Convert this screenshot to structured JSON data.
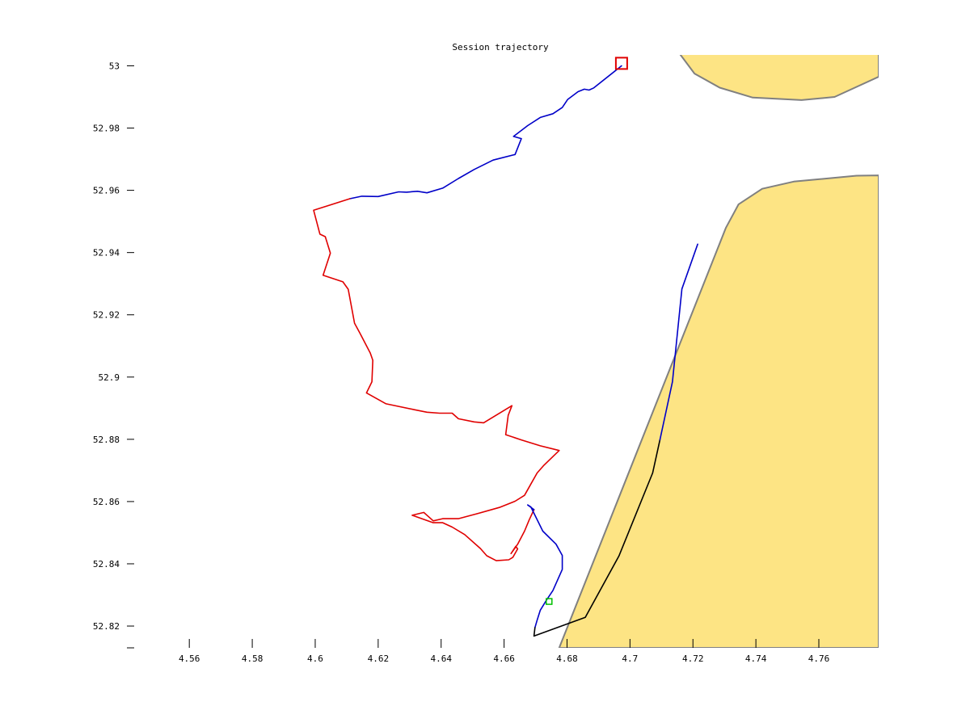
{
  "chart_data": {
    "type": "line",
    "title": "Session trajectory",
    "xlabel": "",
    "ylabel": "",
    "xlim": [
      4.543,
      4.779
    ],
    "ylim": [
      52.813,
      53.0035
    ],
    "x_ticks": [
      4.56,
      4.58,
      4.6,
      4.62,
      4.64,
      4.66,
      4.68,
      4.7,
      4.72,
      4.74,
      4.76
    ],
    "x_tick_labels": [
      "4.56",
      "4.58",
      "4.6",
      "4.62",
      "4.64",
      "4.66",
      "4.68",
      "4.7",
      "4.72",
      "4.74",
      "4.76"
    ],
    "y_ticks": [
      52.82,
      52.84,
      52.86,
      52.88,
      52.9,
      52.92,
      52.94,
      52.96,
      52.98,
      53.0
    ],
    "y_tick_labels": [
      "52.82",
      "52.84",
      "52.86",
      "52.88",
      "52.9",
      "52.92",
      "52.94",
      "52.96",
      "52.98",
      "53"
    ],
    "grid": false,
    "colors": {
      "land_fill": "#fde484",
      "land_edge": "#808080",
      "blue": "#0000c8",
      "red": "#e00000",
      "black": "#000000",
      "start_marker": "#00c000",
      "end_marker": "#e00000"
    },
    "land": [
      {
        "name": "north-land",
        "points": [
          [
            4.7157,
            53.004
          ],
          [
            4.7205,
            52.9975
          ],
          [
            4.7285,
            52.993
          ],
          [
            4.739,
            52.9898
          ],
          [
            4.7545,
            52.989
          ],
          [
            4.765,
            52.99
          ],
          [
            4.779,
            52.9965
          ],
          [
            4.779,
            53.004
          ]
        ]
      },
      {
        "name": "south-land",
        "points": [
          [
            4.6775,
            52.813
          ],
          [
            4.7305,
            52.948
          ],
          [
            4.7345,
            52.9555
          ],
          [
            4.742,
            52.9605
          ],
          [
            4.752,
            52.9628
          ],
          [
            4.772,
            52.9647
          ],
          [
            4.779,
            52.9648
          ],
          [
            4.779,
            52.813
          ]
        ]
      }
    ],
    "series": [
      {
        "color": "blue",
        "points": [
          [
            4.611,
            52.9573
          ],
          [
            4.6148,
            52.9581
          ],
          [
            4.62,
            52.958
          ],
          [
            4.6265,
            52.9595
          ],
          [
            4.629,
            52.9594
          ],
          [
            4.6325,
            52.9597
          ],
          [
            4.6355,
            52.9592
          ],
          [
            4.6405,
            52.9607
          ],
          [
            4.6455,
            52.9638
          ],
          [
            4.6505,
            52.9667
          ],
          [
            4.6565,
            52.9697
          ],
          [
            4.6635,
            52.9715
          ],
          [
            4.6655,
            52.9766
          ],
          [
            4.663,
            52.9773
          ],
          [
            4.6675,
            52.9808
          ],
          [
            4.6715,
            52.9834
          ],
          [
            4.6755,
            52.9846
          ],
          [
            4.6785,
            52.9866
          ],
          [
            4.6802,
            52.9892
          ],
          [
            4.6835,
            52.9917
          ],
          [
            4.6855,
            52.9925
          ],
          [
            4.687,
            52.9922
          ],
          [
            4.6885,
            52.9929
          ],
          [
            4.6973,
            53.0
          ]
        ]
      },
      {
        "color": "red",
        "points": [
          [
            4.611,
            52.9573
          ],
          [
            4.5995,
            52.9536
          ],
          [
            4.6015,
            52.9459
          ],
          [
            4.6032,
            52.9451
          ],
          [
            4.6048,
            52.9398
          ],
          [
            4.6025,
            52.9327
          ],
          [
            4.6088,
            52.9306
          ],
          [
            4.6105,
            52.9282
          ],
          [
            4.6125,
            52.9173
          ],
          [
            4.6142,
            52.9141
          ],
          [
            4.6175,
            52.9077
          ],
          [
            4.6183,
            52.9054
          ],
          [
            4.618,
            52.8985
          ],
          [
            4.6163,
            52.8949
          ],
          [
            4.6225,
            52.8914
          ],
          [
            4.6315,
            52.8895
          ],
          [
            4.6355,
            52.8887
          ],
          [
            4.6395,
            52.8884
          ],
          [
            4.6435,
            52.8884
          ],
          [
            4.6455,
            52.8866
          ],
          [
            4.6505,
            52.8856
          ],
          [
            4.6535,
            52.8853
          ],
          [
            4.6625,
            52.8908
          ],
          [
            4.6613,
            52.8877
          ],
          [
            4.6605,
            52.8815
          ],
          [
            4.6655,
            52.8798
          ],
          [
            4.6715,
            52.8779
          ],
          [
            4.6775,
            52.8764
          ],
          [
            4.6725,
            52.8715
          ],
          [
            4.6705,
            52.8692
          ],
          [
            4.6685,
            52.8656
          ],
          [
            4.6665,
            52.862
          ],
          [
            4.6635,
            52.8601
          ],
          [
            4.6585,
            52.8581
          ],
          [
            4.6515,
            52.8561
          ],
          [
            4.6455,
            52.8545
          ],
          [
            4.6405,
            52.8545
          ],
          [
            4.6375,
            52.8538
          ],
          [
            4.6345,
            52.8565
          ],
          [
            4.6308,
            52.8556
          ],
          [
            4.6375,
            52.8532
          ],
          [
            4.6405,
            52.8532
          ],
          [
            4.6435,
            52.8518
          ],
          [
            4.6475,
            52.8494
          ],
          [
            4.6525,
            52.8449
          ],
          [
            4.6545,
            52.8426
          ],
          [
            4.6575,
            52.841
          ],
          [
            4.6615,
            52.8413
          ],
          [
            4.6628,
            52.8421
          ],
          [
            4.6643,
            52.8448
          ],
          [
            4.6637,
            52.8456
          ],
          [
            4.6622,
            52.8433
          ],
          [
            4.6643,
            52.8463
          ],
          [
            4.6665,
            52.8505
          ],
          [
            4.668,
            52.8542
          ],
          [
            4.6695,
            52.8574
          ]
        ]
      },
      {
        "color": "blue",
        "points": [
          [
            4.6695,
            52.8574
          ],
          [
            4.6675,
            52.8589
          ],
          [
            4.6685,
            52.8583
          ],
          [
            4.6723,
            52.8505
          ],
          [
            4.6765,
            52.8463
          ],
          [
            4.6785,
            52.8427
          ],
          [
            4.6785,
            52.8382
          ],
          [
            4.6755,
            52.8314
          ],
          [
            4.6735,
            52.8284
          ],
          [
            4.6715,
            52.8251
          ],
          [
            4.6705,
            52.8219
          ],
          [
            4.6698,
            52.8195
          ]
        ]
      },
      {
        "color": "black",
        "points": [
          [
            4.6698,
            52.8195
          ],
          [
            4.6695,
            52.8168
          ],
          [
            4.6858,
            52.8228
          ],
          [
            4.6965,
            52.8425
          ],
          [
            4.7072,
            52.8692
          ],
          [
            4.7095,
            52.8798
          ]
        ]
      },
      {
        "color": "blue",
        "points": [
          [
            4.7095,
            52.8798
          ],
          [
            4.7135,
            52.8985
          ],
          [
            4.7165,
            52.9283
          ],
          [
            4.7215,
            52.9427
          ]
        ]
      }
    ],
    "markers": [
      {
        "name": "start",
        "shape": "square",
        "color": "start_marker",
        "x": 4.6743,
        "y": 52.8279
      },
      {
        "name": "end",
        "shape": "square",
        "color": "end_marker",
        "x": 4.6973,
        "y": 53.0008
      }
    ]
  }
}
